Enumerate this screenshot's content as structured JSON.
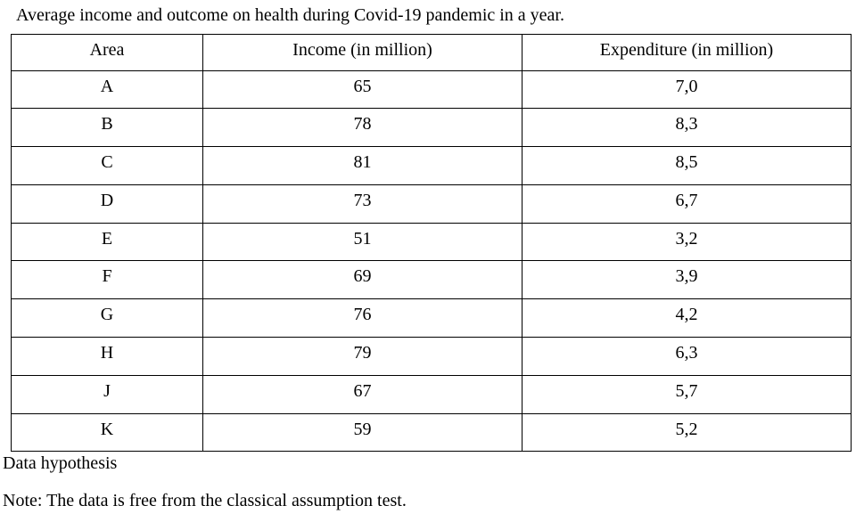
{
  "title": "Average income and outcome on health during Covid-19 pandemic in a year.",
  "table": {
    "headers": [
      "Area",
      "Income (in million)",
      "Expenditure (in million)"
    ],
    "rows": [
      [
        "A",
        "65",
        "7,0"
      ],
      [
        "B",
        "78",
        "8,3"
      ],
      [
        "C",
        "81",
        "8,5"
      ],
      [
        "D",
        "73",
        "6,7"
      ],
      [
        "E",
        "51",
        "3,2"
      ],
      [
        "F",
        "69",
        "3,9"
      ],
      [
        "G",
        "76",
        "4,2"
      ],
      [
        "H",
        "79",
        "6,3"
      ],
      [
        "J",
        "67",
        "5,7"
      ],
      [
        "K",
        "59",
        "5,2"
      ]
    ]
  },
  "footer": {
    "hypothesis_label": "Data hypothesis",
    "note": "Note: The data is free from the classical assumption test."
  },
  "colors": {
    "text": "#000000",
    "background": "#ffffff",
    "border": "#000000"
  }
}
